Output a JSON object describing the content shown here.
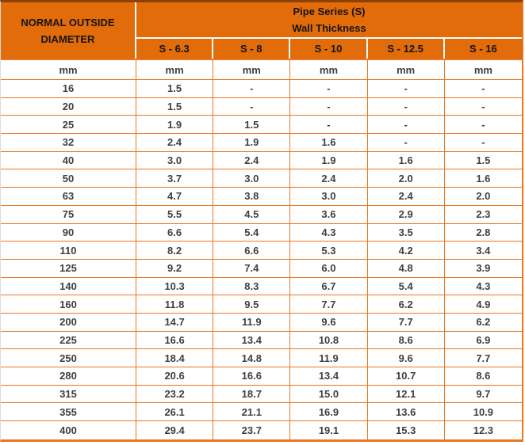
{
  "chart_data": {
    "type": "table",
    "title_lines": [
      "Pipe Series (S)",
      "Wall Thickness"
    ],
    "corner_header_lines": [
      "NORMAL OUTSIDE",
      "DIAMETER"
    ],
    "series_headers": [
      "S - 6.3",
      "S - 8",
      "S - 10",
      "S - 12.5",
      "S - 16"
    ],
    "units_row": [
      "mm",
      "mm",
      "mm",
      "mm",
      "mm",
      "mm"
    ],
    "rows": [
      [
        "16",
        "1.5",
        "-",
        "-",
        "-",
        "-"
      ],
      [
        "20",
        "1.5",
        "-",
        "-",
        "-",
        "-"
      ],
      [
        "25",
        "1.9",
        "1.5",
        "-",
        "-",
        "-"
      ],
      [
        "32",
        "2.4",
        "1.9",
        "1.6",
        "-",
        "-"
      ],
      [
        "40",
        "3.0",
        "2.4",
        "1.9",
        "1.6",
        "1.5"
      ],
      [
        "50",
        "3.7",
        "3.0",
        "2.4",
        "2.0",
        "1.6"
      ],
      [
        "63",
        "4.7",
        "3.8",
        "3.0",
        "2.4",
        "2.0"
      ],
      [
        "75",
        "5.5",
        "4.5",
        "3.6",
        "2.9",
        "2.3"
      ],
      [
        "90",
        "6.6",
        "5.4",
        "4.3",
        "3.5",
        "2.8"
      ],
      [
        "110",
        "8.2",
        "6.6",
        "5.3",
        "4.2",
        "3.4"
      ],
      [
        "125",
        "9.2",
        "7.4",
        "6.0",
        "4.8",
        "3.9"
      ],
      [
        "140",
        "10.3",
        "8.3",
        "6.7",
        "5.4",
        "4.3"
      ],
      [
        "160",
        "11.8",
        "9.5",
        "7.7",
        "6.2",
        "4.9"
      ],
      [
        "200",
        "14.7",
        "11.9",
        "9.6",
        "7.7",
        "6.2"
      ],
      [
        "225",
        "16.6",
        "13.4",
        "10.8",
        "8.6",
        "6.9"
      ],
      [
        "250",
        "18.4",
        "14.8",
        "11.9",
        "9.6",
        "7.7"
      ],
      [
        "280",
        "20.6",
        "16.6",
        "13.4",
        "10.7",
        "8.6"
      ],
      [
        "315",
        "23.2",
        "18.7",
        "15.0",
        "12.1",
        "9.7"
      ],
      [
        "355",
        "26.1",
        "21.1",
        "16.9",
        "13.6",
        "10.9"
      ],
      [
        "400",
        "29.4",
        "23.7",
        "19.1",
        "15.3",
        "12.3"
      ]
    ],
    "colors": {
      "header_fill": "#E26B0A",
      "grid_line": "#E87722",
      "top_border": "#8F4105",
      "header_text": "#151515",
      "body_text": "#3F3F3F"
    }
  }
}
